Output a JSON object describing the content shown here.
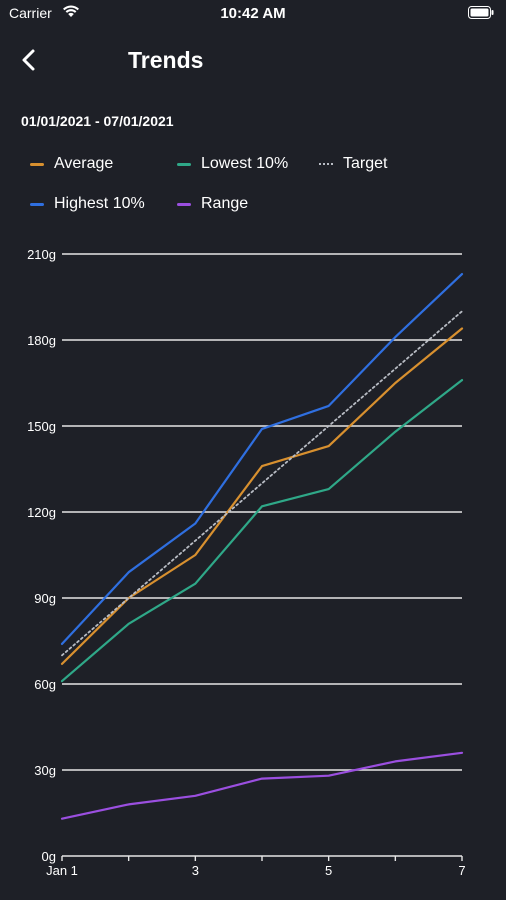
{
  "status_bar": {
    "carrier": "Carrier",
    "time": "10:42 AM"
  },
  "header": {
    "title": "Trends"
  },
  "date_range": "01/01/2021 - 07/01/2021",
  "legend": [
    {
      "label": "Average",
      "color": "#d8902f"
    },
    {
      "label": "Lowest 10%",
      "color": "#2fa888"
    },
    {
      "label": "Target",
      "color": "#b8bcc4",
      "style": "dotted"
    },
    {
      "label": "Highest 10%",
      "color": "#2f6fe0"
    },
    {
      "label": "Range",
      "color": "#9b4fe0"
    }
  ],
  "chart_data": {
    "type": "line",
    "x": [
      1,
      2,
      3,
      4,
      5,
      6,
      7
    ],
    "x_tick_labels": [
      "Jan 1",
      "",
      "3",
      "",
      "5",
      "",
      "7"
    ],
    "y_tick_labels": [
      "0g",
      "30g",
      "60g",
      "90g",
      "120g",
      "150g",
      "180g",
      "210g"
    ],
    "ylim": [
      0,
      210
    ],
    "grid": true,
    "series": [
      {
        "name": "Highest 10%",
        "color": "#2f6fe0",
        "values": [
          74,
          99,
          116,
          149,
          157,
          181,
          203
        ]
      },
      {
        "name": "Average",
        "color": "#d8902f",
        "values": [
          67,
          90,
          105,
          136,
          143,
          165,
          184
        ]
      },
      {
        "name": "Lowest 10%",
        "color": "#2fa888",
        "values": [
          61,
          81,
          95,
          122,
          128,
          148,
          166
        ]
      },
      {
        "name": "Target",
        "color": "#b8bcc4",
        "style": "dotted",
        "values": [
          70,
          90,
          110,
          130,
          150,
          170,
          190
        ]
      },
      {
        "name": "Range",
        "color": "#9b4fe0",
        "values": [
          13,
          18,
          21,
          27,
          28,
          33,
          36
        ]
      }
    ]
  }
}
